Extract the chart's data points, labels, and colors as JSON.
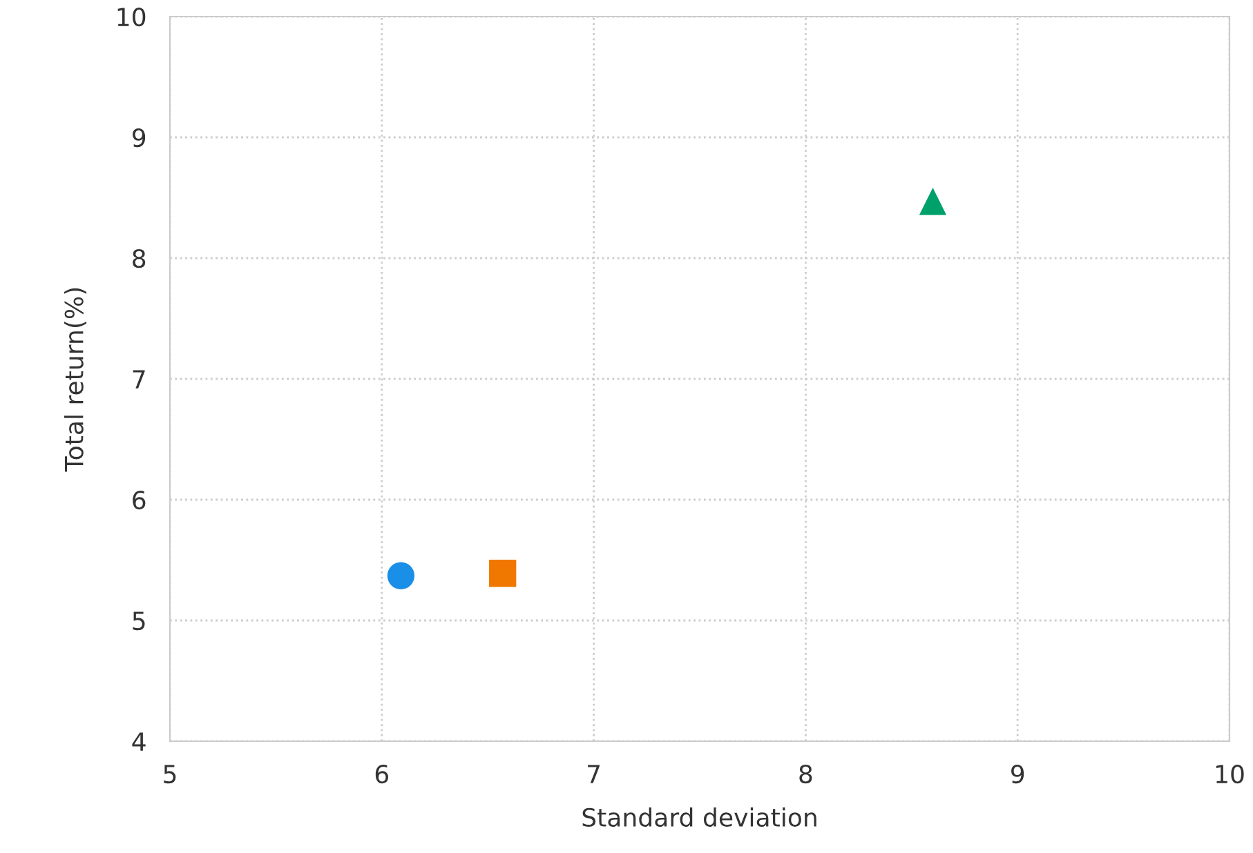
{
  "chart_data": {
    "type": "scatter",
    "xlabel": "Standard deviation",
    "ylabel": "Total return(%)",
    "xlim": [
      5,
      10
    ],
    "ylim": [
      4,
      10
    ],
    "xticks": [
      5,
      6,
      7,
      8,
      9,
      10
    ],
    "yticks": [
      4,
      5,
      6,
      7,
      8,
      9,
      10
    ],
    "grid": true,
    "legend": false,
    "series": [
      {
        "color": "#1a8fe8",
        "marker": "circle",
        "x": [
          6.09
        ],
        "values": [
          5.37
        ]
      },
      {
        "color": "#f07800",
        "marker": "square",
        "x": [
          6.57
        ],
        "values": [
          5.39
        ]
      },
      {
        "color": "#00a06a",
        "marker": "triangle",
        "x": [
          8.6
        ],
        "values": [
          8.47
        ]
      }
    ]
  }
}
